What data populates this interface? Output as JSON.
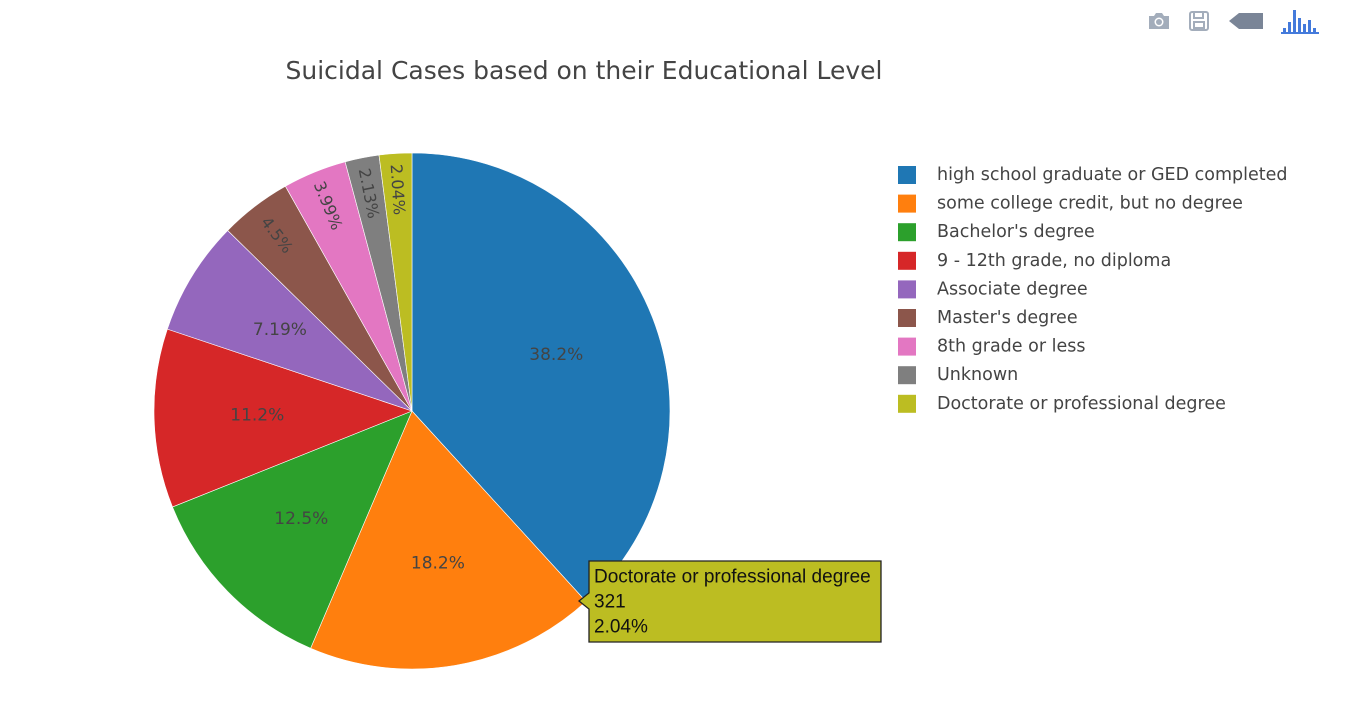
{
  "chart_data": {
    "type": "pie",
    "title": "Suicidal Cases based on their Educational Level",
    "direction": "clockwise",
    "start_angle_deg": 90,
    "labels": [
      "high school graduate or GED completed",
      "some college credit, but no degree",
      "Bachelor's degree",
      "9 - 12th grade, no diploma",
      "Associate degree",
      "Master's degree",
      "8th grade or less",
      "Unknown",
      "Doctorate or professional degree"
    ],
    "percents": [
      38.2,
      18.2,
      12.5,
      11.2,
      7.19,
      4.5,
      3.99,
      2.13,
      2.04
    ],
    "percent_labels": [
      "38.2%",
      "18.2%",
      "12.5%",
      "11.2%",
      "7.19%",
      "4.5%",
      "3.99%",
      "2.13%",
      "2.04%"
    ],
    "colors": [
      "#1f77b4",
      "#ff7f0e",
      "#2ca02c",
      "#d62728",
      "#9467bd",
      "#8c564b",
      "#e377c2",
      "#7f7f7f",
      "#bcbd22"
    ],
    "legend_position": "right",
    "hover": {
      "label": "Doctorate or professional degree",
      "value": "321",
      "percent": "2.04%"
    }
  },
  "modebar": {
    "icons": [
      "camera-icon",
      "save-icon",
      "compare-data-icon",
      "plotly-logo-icon"
    ],
    "color": "#a3adbb",
    "logo_color": "#447adb"
  }
}
